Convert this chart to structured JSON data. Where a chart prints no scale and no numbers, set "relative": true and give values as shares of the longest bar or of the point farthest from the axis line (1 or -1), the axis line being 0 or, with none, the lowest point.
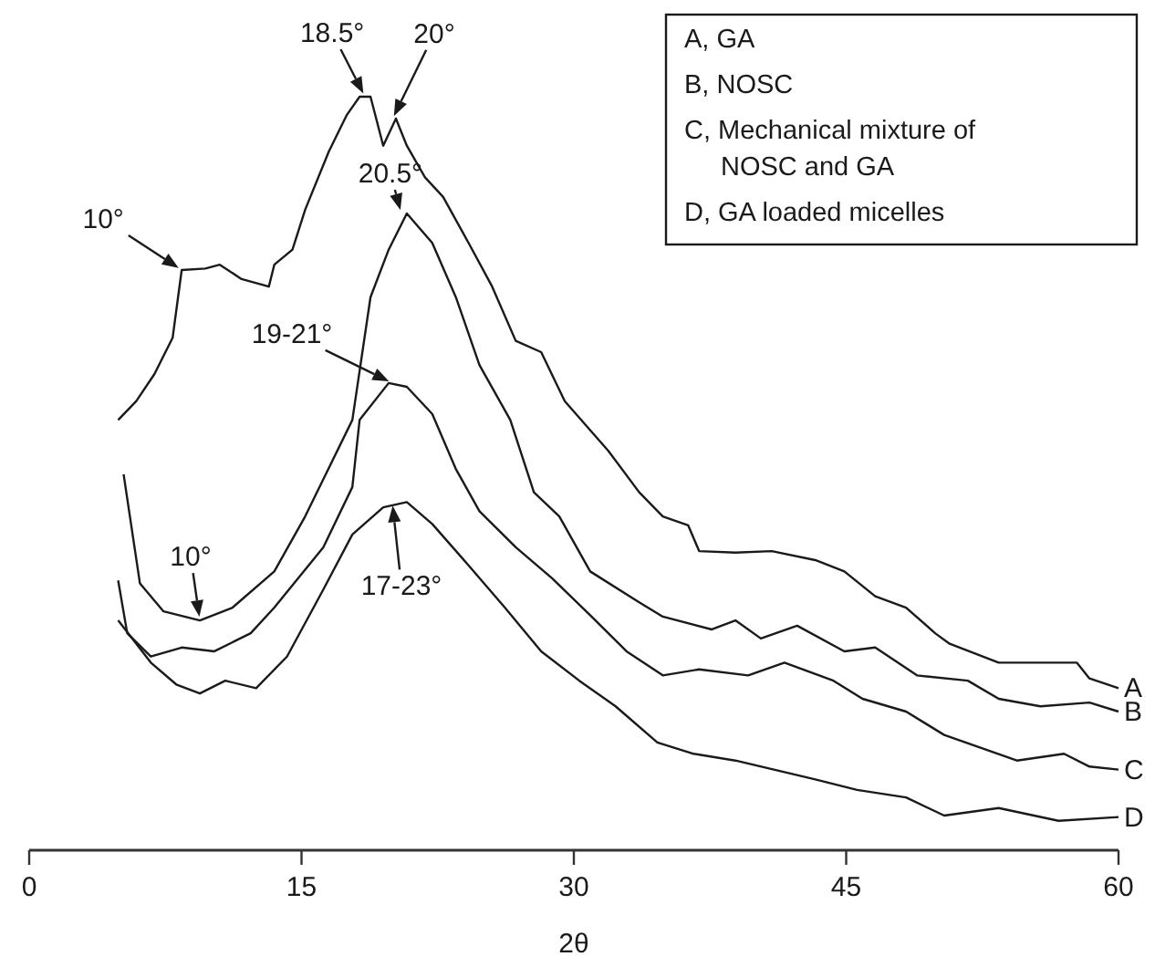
{
  "chart_data": {
    "type": "line",
    "xlabel": "2θ",
    "relative": true,
    "xlim": [
      0,
      60
    ],
    "xticks": [
      0,
      15,
      30,
      45,
      60
    ],
    "grid": false,
    "line_style": "solid",
    "marker": "none",
    "series": [
      {
        "name": "A",
        "color": "#1a1a1a",
        "x": [
          4.9,
          5.9,
          6.9,
          7.9,
          8.4,
          9.7,
          10.5,
          11.7,
          13.2,
          13.5,
          14.5,
          15.2,
          16.5,
          17.5,
          18.2,
          18.8,
          19.5,
          20.2,
          20.8,
          21.8,
          22.8,
          24.2,
          25.5,
          26.8,
          28.2,
          29.5,
          31.9,
          33.6,
          34.9,
          36.3,
          36.9,
          38.9,
          40.9,
          43.3,
          44.9,
          46.6,
          48.3,
          49.9,
          50.7,
          53.4,
          55.0,
          57.7,
          58.4,
          60.0
        ],
        "values": [
          0.571,
          0.596,
          0.632,
          0.68,
          0.77,
          0.772,
          0.777,
          0.758,
          0.748,
          0.777,
          0.797,
          0.85,
          0.927,
          0.976,
          1.0,
          1.0,
          0.935,
          0.971,
          0.935,
          0.893,
          0.867,
          0.806,
          0.748,
          0.676,
          0.661,
          0.596,
          0.53,
          0.475,
          0.443,
          0.431,
          0.397,
          0.395,
          0.397,
          0.385,
          0.37,
          0.337,
          0.322,
          0.288,
          0.274,
          0.249,
          0.249,
          0.249,
          0.228,
          0.215
        ]
      },
      {
        "name": "B",
        "color": "#1a1a1a",
        "x": [
          5.2,
          6.1,
          7.4,
          9.4,
          11.2,
          13.5,
          15.2,
          17.8,
          18.8,
          19.8,
          20.8,
          22.2,
          23.5,
          24.8,
          26.5,
          27.8,
          29.2,
          30.9,
          33.6,
          34.9,
          37.6,
          38.9,
          40.3,
          42.3,
          44.9,
          46.6,
          48.9,
          51.7,
          53.4,
          55.7,
          58.4,
          60.0
        ],
        "values": [
          0.499,
          0.354,
          0.317,
          0.305,
          0.322,
          0.37,
          0.443,
          0.571,
          0.734,
          0.797,
          0.845,
          0.806,
          0.734,
          0.644,
          0.571,
          0.475,
          0.443,
          0.37,
          0.329,
          0.31,
          0.293,
          0.305,
          0.281,
          0.298,
          0.264,
          0.269,
          0.232,
          0.225,
          0.201,
          0.191,
          0.196,
          0.184
        ]
      },
      {
        "name": "C",
        "color": "#1a1a1a",
        "x": [
          4.9,
          5.4,
          6.7,
          8.4,
          10.2,
          12.2,
          13.5,
          16.2,
          17.8,
          18.2,
          19.8,
          20.8,
          22.2,
          23.5,
          24.8,
          26.8,
          28.8,
          30.9,
          32.9,
          34.9,
          36.9,
          39.6,
          41.6,
          44.3,
          45.9,
          48.3,
          50.4,
          52.4,
          54.4,
          57.0,
          58.4,
          60.0
        ],
        "values": [
          0.358,
          0.288,
          0.257,
          0.269,
          0.264,
          0.288,
          0.322,
          0.402,
          0.482,
          0.571,
          0.62,
          0.615,
          0.579,
          0.506,
          0.45,
          0.402,
          0.361,
          0.312,
          0.264,
          0.232,
          0.24,
          0.232,
          0.249,
          0.225,
          0.201,
          0.184,
          0.153,
          0.136,
          0.119,
          0.128,
          0.111,
          0.107
        ]
      },
      {
        "name": "D",
        "color": "#1a1a1a",
        "x": [
          4.9,
          6.7,
          8.1,
          9.4,
          10.8,
          12.5,
          14.2,
          16.2,
          17.8,
          19.5,
          20.8,
          22.2,
          24.2,
          26.2,
          28.2,
          30.3,
          32.3,
          34.6,
          36.6,
          38.9,
          43.3,
          45.6,
          48.3,
          50.4,
          53.4,
          56.7,
          60.0
        ],
        "values": [
          0.305,
          0.249,
          0.22,
          0.208,
          0.225,
          0.215,
          0.257,
          0.346,
          0.419,
          0.455,
          0.462,
          0.433,
          0.378,
          0.322,
          0.264,
          0.225,
          0.191,
          0.143,
          0.128,
          0.119,
          0.094,
          0.08,
          0.07,
          0.046,
          0.056,
          0.039,
          0.044
        ]
      }
    ],
    "annotations": [
      {
        "text": "18.5°",
        "x": 18.5,
        "y": 1.0
      },
      {
        "text": "20°",
        "x": 20,
        "y": 0.97
      },
      {
        "text": "10°",
        "x": 8.4,
        "y": 0.77
      },
      {
        "text": "20.5°",
        "x": 20.5,
        "y": 0.845
      },
      {
        "text": "19-21°",
        "x": 20,
        "y": 0.62
      },
      {
        "text": "10°",
        "x": 9.4,
        "y": 0.305
      },
      {
        "text": "17-23°",
        "x": 20,
        "y": 0.462
      },
      "A, GA",
      "B, NOSC",
      "C, Mechanical mixture of NOSC and GA",
      "D, GA loaded micelles"
    ]
  }
}
